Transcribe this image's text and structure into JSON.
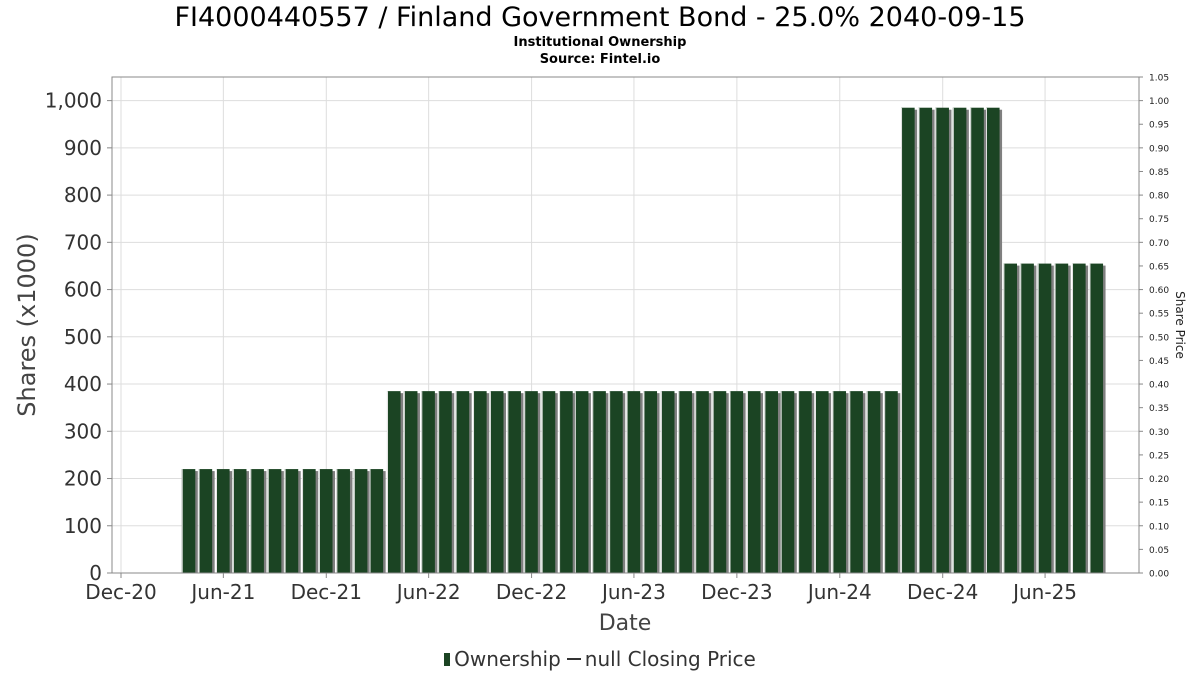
{
  "header": {
    "title": "FI4000440557 / Finland Government Bond - 25.0% 2040-09-15",
    "subtitle": "Institutional Ownership",
    "source": "Source: Fintel.io"
  },
  "legend": {
    "ownership": "Ownership",
    "price": "null Closing Price"
  },
  "colors": {
    "bar": "#1b4423",
    "bar_shadow": "#7f7f7f",
    "grid": "#dddddd"
  },
  "chart_data": {
    "type": "bar",
    "xlabel": "Date",
    "ylabel": "Shares (x1000)",
    "y2label": "Share Price",
    "ylim": [
      0,
      1050
    ],
    "y2lim": [
      0,
      1.05
    ],
    "xlim": [
      "2020-11-15",
      "2025-11-15"
    ],
    "grid": true,
    "legend_position": "bottom",
    "x_ticks": [
      {
        "label": "Dec-20",
        "date": "2020-12-01"
      },
      {
        "label": "Jun-21",
        "date": "2021-06-01"
      },
      {
        "label": "Dec-21",
        "date": "2021-12-01"
      },
      {
        "label": "Jun-22",
        "date": "2022-06-01"
      },
      {
        "label": "Dec-22",
        "date": "2022-12-01"
      },
      {
        "label": "Jun-23",
        "date": "2023-06-01"
      },
      {
        "label": "Dec-23",
        "date": "2023-12-01"
      },
      {
        "label": "Jun-24",
        "date": "2024-06-01"
      },
      {
        "label": "Dec-24",
        "date": "2024-12-01"
      },
      {
        "label": "Jun-25",
        "date": "2025-06-01"
      }
    ],
    "y_ticks": [
      "0",
      "100",
      "200",
      "300",
      "400",
      "500",
      "600",
      "700",
      "800",
      "900",
      "1,000"
    ],
    "y2_ticks": [
      "0.00",
      "0.05",
      "0.10",
      "0.15",
      "0.20",
      "0.25",
      "0.30",
      "0.35",
      "0.40",
      "0.45",
      "0.50",
      "0.55",
      "0.60",
      "0.65",
      "0.70",
      "0.75",
      "0.80",
      "0.85",
      "0.90",
      "0.95",
      "1.00",
      "1.05"
    ],
    "series": [
      {
        "name": "Ownership",
        "values": [
          {
            "date": "2021-03-31",
            "value": 220
          },
          {
            "date": "2021-04-30",
            "value": 220
          },
          {
            "date": "2021-05-31",
            "value": 220
          },
          {
            "date": "2021-06-30",
            "value": 220
          },
          {
            "date": "2021-07-31",
            "value": 220
          },
          {
            "date": "2021-08-31",
            "value": 220
          },
          {
            "date": "2021-09-30",
            "value": 220
          },
          {
            "date": "2021-10-31",
            "value": 220
          },
          {
            "date": "2021-11-30",
            "value": 220
          },
          {
            "date": "2021-12-31",
            "value": 220
          },
          {
            "date": "2022-01-31",
            "value": 220
          },
          {
            "date": "2022-02-28",
            "value": 220
          },
          {
            "date": "2022-03-31",
            "value": 385
          },
          {
            "date": "2022-04-30",
            "value": 385
          },
          {
            "date": "2022-05-31",
            "value": 385
          },
          {
            "date": "2022-06-30",
            "value": 385
          },
          {
            "date": "2022-07-31",
            "value": 385
          },
          {
            "date": "2022-08-31",
            "value": 385
          },
          {
            "date": "2022-09-30",
            "value": 385
          },
          {
            "date": "2022-10-31",
            "value": 385
          },
          {
            "date": "2022-11-30",
            "value": 385
          },
          {
            "date": "2022-12-31",
            "value": 385
          },
          {
            "date": "2023-01-31",
            "value": 385
          },
          {
            "date": "2023-02-28",
            "value": 385
          },
          {
            "date": "2023-03-31",
            "value": 385
          },
          {
            "date": "2023-04-30",
            "value": 385
          },
          {
            "date": "2023-05-31",
            "value": 385
          },
          {
            "date": "2023-06-30",
            "value": 385
          },
          {
            "date": "2023-07-31",
            "value": 385
          },
          {
            "date": "2023-08-31",
            "value": 385
          },
          {
            "date": "2023-09-30",
            "value": 385
          },
          {
            "date": "2023-10-31",
            "value": 385
          },
          {
            "date": "2023-11-30",
            "value": 385
          },
          {
            "date": "2023-12-31",
            "value": 385
          },
          {
            "date": "2024-01-31",
            "value": 385
          },
          {
            "date": "2024-02-29",
            "value": 385
          },
          {
            "date": "2024-03-31",
            "value": 385
          },
          {
            "date": "2024-04-30",
            "value": 385
          },
          {
            "date": "2024-05-31",
            "value": 385
          },
          {
            "date": "2024-06-30",
            "value": 385
          },
          {
            "date": "2024-07-31",
            "value": 385
          },
          {
            "date": "2024-08-31",
            "value": 385
          },
          {
            "date": "2024-09-30",
            "value": 985
          },
          {
            "date": "2024-10-31",
            "value": 985
          },
          {
            "date": "2024-11-30",
            "value": 985
          },
          {
            "date": "2024-12-31",
            "value": 985
          },
          {
            "date": "2025-01-31",
            "value": 985
          },
          {
            "date": "2025-02-28",
            "value": 985
          },
          {
            "date": "2025-03-31",
            "value": 655
          },
          {
            "date": "2025-04-30",
            "value": 655
          },
          {
            "date": "2025-05-31",
            "value": 655
          },
          {
            "date": "2025-06-30",
            "value": 655
          },
          {
            "date": "2025-07-31",
            "value": 655
          },
          {
            "date": "2025-08-31",
            "value": 655
          }
        ]
      }
    ]
  }
}
